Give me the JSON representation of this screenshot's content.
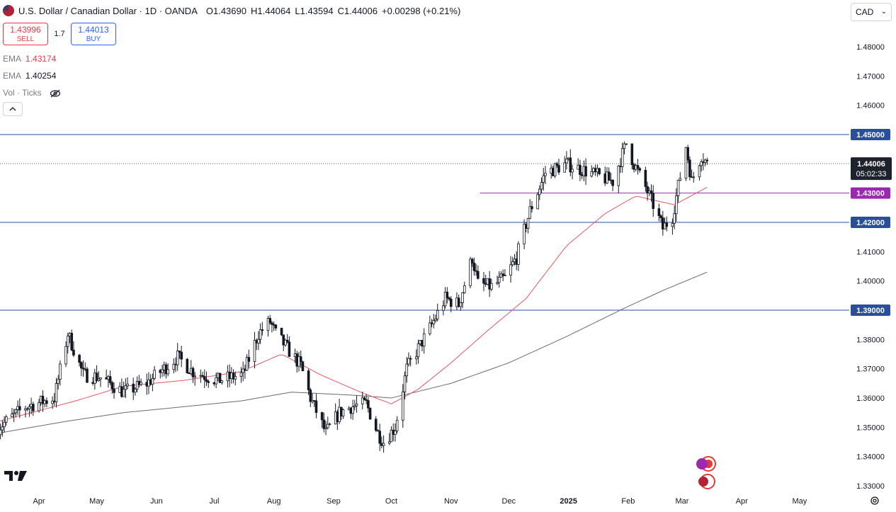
{
  "header": {
    "symbol": "U.S. Dollar / Canadian Dollar · 1D · OANDA",
    "o_label": "O",
    "o_value": "1.43690",
    "h_label": "H",
    "h_value": "1.44064",
    "l_label": "L",
    "l_value": "1.43594",
    "c_label": "C",
    "c_value": "1.44006",
    "change": "+0.00298 (+0.21%)"
  },
  "trade": {
    "sell_price": "1.43996",
    "sell_label": "SELL",
    "spread": "1.7",
    "buy_price": "1.44013",
    "buy_label": "BUY"
  },
  "indicators": {
    "ema1_label": "EMA",
    "ema1_value": "1.43174",
    "ema2_label": "EMA",
    "ema2_value": "1.40254",
    "vol_label": "Vol · Ticks"
  },
  "currency": {
    "selected": "CAD"
  },
  "colors": {
    "up": "#131722",
    "down": "#131722",
    "ema_fast": "#e5575f",
    "ema_slow": "#6b6b6b",
    "hline": "#2a4f9a",
    "hline_magenta": "#9c27b0",
    "accent_blue": "#2962ff",
    "accent_red": "#f23645"
  },
  "icons": {
    "eye_hidden": "eye-slash-icon",
    "collapse": "chevron-up-icon",
    "settings": "gear-icon",
    "logo": "tradingview-logo",
    "flags": "flag-badges"
  },
  "chart_data": {
    "type": "candlestick",
    "ylim": [
      1.3265,
      1.4855
    ],
    "price_ticks": [
      "1.48000",
      "1.47000",
      "1.46000",
      "1.45000",
      "1.44000",
      "1.43000",
      "1.42000",
      "1.41000",
      "1.40000",
      "1.39000",
      "1.38000",
      "1.37000",
      "1.36000",
      "1.35000",
      "1.34000",
      "1.33000"
    ],
    "x_labels": [
      "Apr",
      "May",
      "Jun",
      "Jul",
      "Aug",
      "Sep",
      "Oct",
      "Nov",
      "Dec",
      "2025",
      "Feb",
      "Mar",
      "Apr",
      "May"
    ],
    "x_label_dates": [
      "2024-04-01",
      "2024-05-01",
      "2024-06-01",
      "2024-07-01",
      "2024-08-01",
      "2024-09-01",
      "2024-10-01",
      "2024-11-01",
      "2024-12-01",
      "2025-01-01",
      "2025-02-01",
      "2025-03-01",
      "2025-04-01",
      "2025-05-01"
    ],
    "horizontal_lines": [
      {
        "price": 1.45,
        "label": "1.45000",
        "color": "#2a4f9a"
      },
      {
        "price": 1.43,
        "label": "1.43000",
        "color": "#9c27b0",
        "start_date": "2024-11-16"
      },
      {
        "price": 1.42,
        "label": "1.42000",
        "color": "#2a4f9a"
      },
      {
        "price": 1.39,
        "label": "1.39000",
        "color": "#2a4f9a"
      }
    ],
    "last_price": {
      "price": 1.44006,
      "label": "1.44006",
      "countdown": "05:02:33"
    },
    "close_anchors": [
      [
        "2024-03-11",
        1.35
      ],
      [
        "2024-03-25",
        1.357
      ],
      [
        "2024-04-09",
        1.36
      ],
      [
        "2024-04-16",
        1.382
      ],
      [
        "2024-04-24",
        1.368
      ],
      [
        "2024-05-03",
        1.367
      ],
      [
        "2024-05-15",
        1.362
      ],
      [
        "2024-05-27",
        1.365
      ],
      [
        "2024-06-12",
        1.374
      ],
      [
        "2024-06-20",
        1.369
      ],
      [
        "2024-07-03",
        1.366
      ],
      [
        "2024-07-16",
        1.368
      ],
      [
        "2024-07-24",
        1.382
      ],
      [
        "2024-07-30",
        1.386
      ],
      [
        "2024-08-02",
        1.382
      ],
      [
        "2024-08-15",
        1.371
      ],
      [
        "2024-08-20",
        1.36
      ],
      [
        "2024-08-28",
        1.348
      ],
      [
        "2024-09-04",
        1.355
      ],
      [
        "2024-09-10",
        1.357
      ],
      [
        "2024-09-18",
        1.358
      ],
      [
        "2024-09-24",
        1.348
      ],
      [
        "2024-09-27",
        1.345
      ],
      [
        "2024-10-03",
        1.35
      ],
      [
        "2024-10-09",
        1.37
      ],
      [
        "2024-10-22",
        1.385
      ],
      [
        "2024-10-29",
        1.394
      ],
      [
        "2024-11-05",
        1.392
      ],
      [
        "2024-11-12",
        1.408
      ],
      [
        "2024-11-15",
        1.399
      ],
      [
        "2024-11-22",
        1.398
      ],
      [
        "2024-11-29",
        1.401
      ],
      [
        "2024-12-05",
        1.408
      ],
      [
        "2024-12-12",
        1.424
      ],
      [
        "2024-12-17",
        1.432
      ],
      [
        "2024-12-20",
        1.437
      ],
      [
        "2024-12-31",
        1.44
      ],
      [
        "2025-01-08",
        1.438
      ],
      [
        "2025-01-16",
        1.436
      ],
      [
        "2025-01-24",
        1.434
      ],
      [
        "2025-01-31",
        1.447
      ],
      [
        "2025-02-04",
        1.44
      ],
      [
        "2025-02-10",
        1.432
      ],
      [
        "2025-02-14",
        1.426
      ],
      [
        "2025-02-19",
        1.418
      ],
      [
        "2025-02-24",
        1.422
      ],
      [
        "2025-03-03",
        1.446
      ],
      [
        "2025-03-06",
        1.434
      ],
      [
        "2025-03-11",
        1.443
      ],
      [
        "2025-03-14",
        1.44
      ]
    ],
    "ema_fast_anchors": [
      [
        "2024-03-11",
        1.352
      ],
      [
        "2024-04-20",
        1.359
      ],
      [
        "2024-05-15",
        1.364
      ],
      [
        "2024-06-15",
        1.366
      ],
      [
        "2024-07-15",
        1.369
      ],
      [
        "2024-08-05",
        1.375
      ],
      [
        "2024-08-25",
        1.368
      ],
      [
        "2024-09-15",
        1.362
      ],
      [
        "2024-10-01",
        1.358
      ],
      [
        "2024-10-15",
        1.363
      ],
      [
        "2024-11-01",
        1.372
      ],
      [
        "2024-11-20",
        1.383
      ],
      [
        "2024-12-10",
        1.394
      ],
      [
        "2024-12-31",
        1.412
      ],
      [
        "2025-01-20",
        1.423
      ],
      [
        "2025-02-05",
        1.429
      ],
      [
        "2025-02-25",
        1.426
      ],
      [
        "2025-03-14",
        1.432
      ]
    ],
    "ema_slow_anchors": [
      [
        "2024-03-11",
        1.348
      ],
      [
        "2024-04-15",
        1.352
      ],
      [
        "2024-05-15",
        1.355
      ],
      [
        "2024-06-15",
        1.357
      ],
      [
        "2024-07-15",
        1.359
      ],
      [
        "2024-08-10",
        1.362
      ],
      [
        "2024-09-10",
        1.361
      ],
      [
        "2024-10-01",
        1.36
      ],
      [
        "2024-11-01",
        1.365
      ],
      [
        "2024-12-01",
        1.372
      ],
      [
        "2024-12-31",
        1.381
      ],
      [
        "2025-01-31",
        1.391
      ],
      [
        "2025-02-20",
        1.397
      ],
      [
        "2025-03-14",
        1.403
      ]
    ]
  }
}
